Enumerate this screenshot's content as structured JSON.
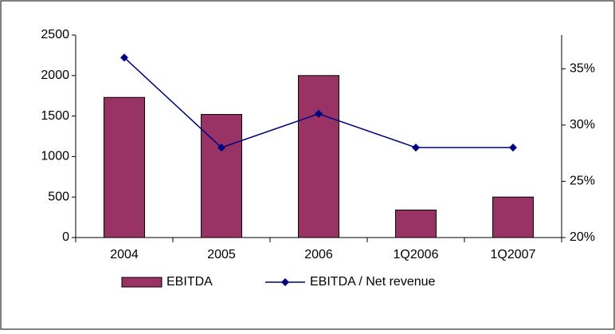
{
  "chart_data": {
    "type": "bar",
    "categories": [
      "2004",
      "2005",
      "2006",
      "1Q2006",
      "1Q2007"
    ],
    "series": [
      {
        "name": "EBITDA",
        "color": "#993366",
        "type": "bar",
        "values": [
          1730,
          1520,
          2000,
          340,
          500
        ]
      },
      {
        "name": "EBITDA / Net revenue",
        "color": "#000080",
        "type": "line",
        "axis": "y2",
        "values": [
          36,
          28,
          31,
          28,
          28
        ]
      }
    ],
    "ylim": [
      0,
      2500
    ],
    "yticks": [
      0,
      500,
      1000,
      1500,
      2000,
      2500
    ],
    "y2lim": [
      20,
      38
    ],
    "y2ticks": [
      {
        "value": 20,
        "label": "20%"
      },
      {
        "value": 25,
        "label": "25%"
      },
      {
        "value": 30,
        "label": "30%"
      },
      {
        "value": 35,
        "label": "35%"
      }
    ],
    "grid": false,
    "legend": "bottom"
  }
}
